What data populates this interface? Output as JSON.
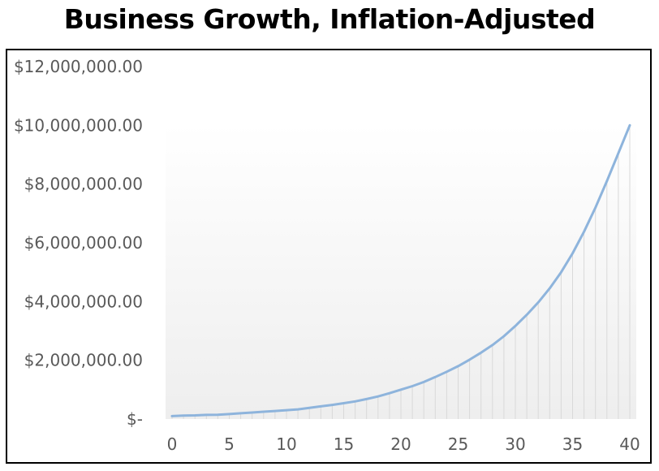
{
  "chart_data": {
    "type": "area",
    "title": "Business Growth, Inflation-Adjusted",
    "xlabel": "",
    "ylabel": "",
    "xlim": [
      0,
      40
    ],
    "ylim": [
      0,
      12000000
    ],
    "x_ticks": [
      "0",
      "5",
      "10",
      "15",
      "20",
      "25",
      "30",
      "35",
      "40"
    ],
    "y_ticks": [
      "$-",
      "$2,000,000.00",
      "$4,000,000.00",
      "$6,000,000.00",
      "$8,000,000.00",
      "$10,000,000.00",
      "$12,000,000.00"
    ],
    "grid": false,
    "legend": "none",
    "series": [
      {
        "color": "#8eb4dc",
        "x": [
          0,
          1,
          2,
          3,
          4,
          5,
          6,
          7,
          8,
          9,
          10,
          11,
          12,
          13,
          14,
          15,
          16,
          17,
          18,
          19,
          20,
          21,
          22,
          23,
          24,
          25,
          26,
          27,
          28,
          29,
          30,
          31,
          32,
          33,
          34,
          35,
          36,
          37,
          38,
          39,
          40
        ],
        "values": [
          100000,
          120000,
          125000,
          140000,
          145000,
          170000,
          195000,
          220000,
          250000,
          275000,
          300000,
          330000,
          380000,
          430000,
          480000,
          540000,
          600000,
          680000,
          770000,
          880000,
          1000000,
          1120000,
          1260000,
          1430000,
          1610000,
          1800000,
          2020000,
          2260000,
          2520000,
          2820000,
          3170000,
          3550000,
          3970000,
          4450000,
          5000000,
          5640000,
          6380000,
          7200000,
          8100000,
          9050000,
          10000000
        ]
      }
    ]
  }
}
